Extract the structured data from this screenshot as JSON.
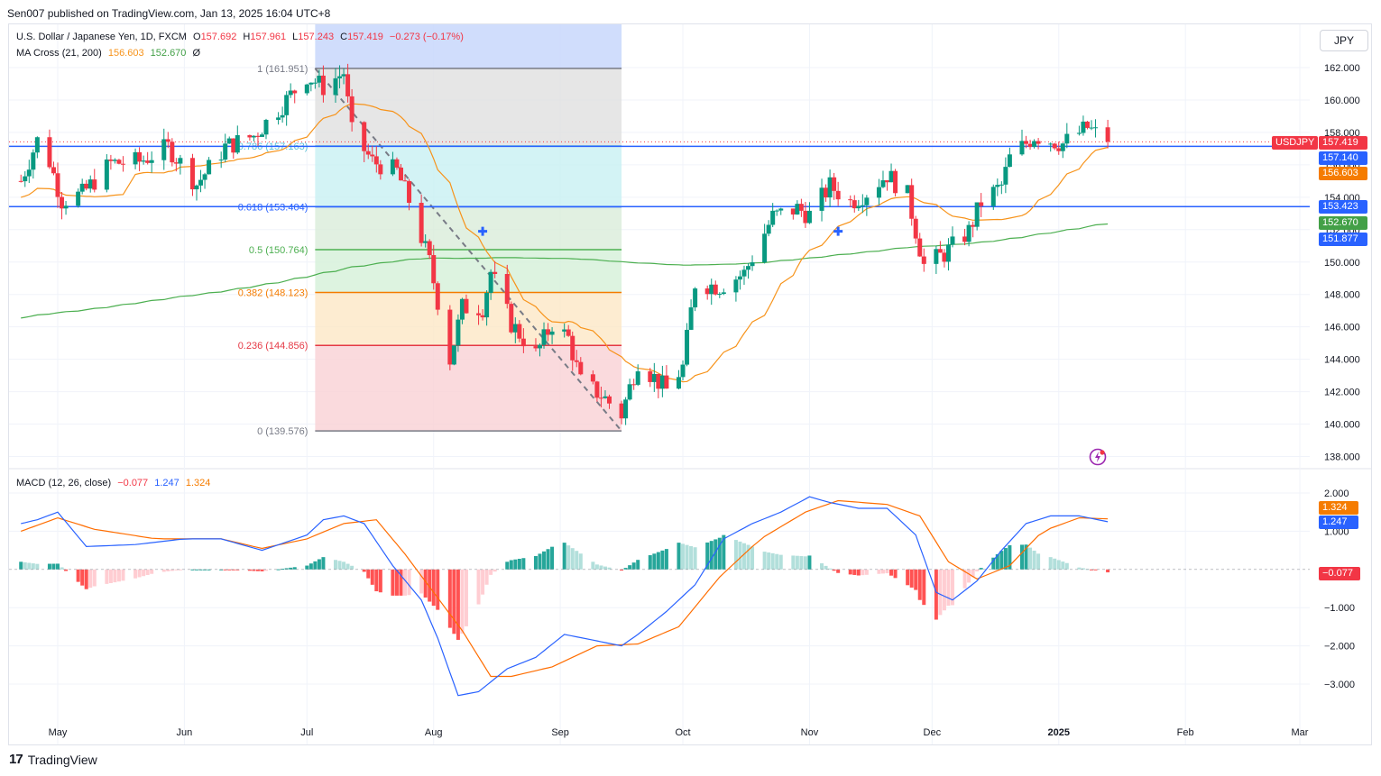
{
  "header": {
    "published": "Sen007 published on TradingView.com, Jan 13, 2025 16:04 UTC+8"
  },
  "legend": {
    "symbol": "U.S. Dollar / Japanese Yen, 1D, FXCM",
    "open_label": "O",
    "open": "157.692",
    "high_label": "H",
    "high": "157.961",
    "low_label": "L",
    "low": "157.243",
    "close_label": "C",
    "close": "157.419",
    "change": "−0.273 (−0.17%)",
    "ma_label": "MA Cross (21, 200)",
    "ma_fast": "156.603",
    "ma_slow": "152.670",
    "ma_extra": "Ø"
  },
  "macd_legend": {
    "label": "MACD (12, 26, close)",
    "hist": "−0.077",
    "macd": "1.247",
    "signal": "1.324"
  },
  "currency_button": "JPY",
  "price_tags": {
    "symbol_tag": "USDJPY",
    "last": "157.419",
    "line1": "157.140",
    "ma_fast": "156.603",
    "line2": "153.423",
    "ma_slow": "152.670",
    "cross": "151.877",
    "macd_signal": "1.324",
    "macd_line": "1.247",
    "macd_hist": "−0.077"
  },
  "footer": {
    "brand": "TradingView"
  },
  "colors": {
    "up": "#089981",
    "down": "#f23645",
    "fast_ma": "#f7931a",
    "slow_ma": "#4caf50",
    "hline": "#2962ff",
    "macd": "#2962ff",
    "signal": "#ff6d00",
    "hist_up_strong": "#26a69a",
    "hist_up_weak": "#b2dfdb",
    "hist_down_strong": "#ff5252",
    "hist_down_weak": "#ffcdd2"
  },
  "chart_data": [
    {
      "type": "candlestick",
      "title": "U.S. Dollar / Japanese Yen, 1D, FXCM",
      "x_ticks": [
        "May",
        "Jun",
        "Jul",
        "Aug",
        "Sep",
        "Oct",
        "Nov",
        "Dec",
        "2025",
        "Feb",
        "Mar"
      ],
      "y_ticks": [
        "138.000",
        "140.000",
        "142.000",
        "144.000",
        "146.000",
        "148.000",
        "150.000",
        "152.000",
        "154.000",
        "156.000",
        "158.000",
        "160.000",
        "162.000"
      ],
      "ylim": [
        137.5,
        164.0
      ],
      "close_series_approx": [
        [
          "2024-04-22",
          155.0
        ],
        [
          "2024-04-26",
          157.5
        ],
        [
          "2024-04-29",
          156.2
        ],
        [
          "2024-05-02",
          153.8
        ],
        [
          "2024-05-07",
          154.2
        ],
        [
          "2024-05-14",
          156.1
        ],
        [
          "2024-05-21",
          156.2
        ],
        [
          "2024-05-28",
          157.1
        ],
        [
          "2024-06-04",
          154.8
        ],
        [
          "2024-06-11",
          157.1
        ],
        [
          "2024-06-18",
          157.8
        ],
        [
          "2024-06-25",
          159.7
        ],
        [
          "2024-07-01",
          161.5
        ],
        [
          "2024-07-05",
          160.8
        ],
        [
          "2024-07-10",
          161.7
        ],
        [
          "2024-07-12",
          158.0
        ],
        [
          "2024-07-17",
          156.2
        ],
        [
          "2024-07-23",
          155.6
        ],
        [
          "2024-07-26",
          153.8
        ],
        [
          "2024-07-31",
          150.0
        ],
        [
          "2024-08-05",
          144.0
        ],
        [
          "2024-08-08",
          147.2
        ],
        [
          "2024-08-13",
          147.2
        ],
        [
          "2024-08-15",
          149.4
        ],
        [
          "2024-08-20",
          146.2
        ],
        [
          "2024-08-26",
          144.3
        ],
        [
          "2024-08-30",
          146.2
        ],
        [
          "2024-09-03",
          145.3
        ],
        [
          "2024-09-06",
          142.6
        ],
        [
          "2024-09-11",
          141.8
        ],
        [
          "2024-09-16",
          140.6
        ],
        [
          "2024-09-20",
          143.9
        ],
        [
          "2024-09-27",
          142.1
        ],
        [
          "2024-10-01",
          143.5
        ],
        [
          "2024-10-04",
          148.7
        ],
        [
          "2024-10-10",
          148.5
        ],
        [
          "2024-10-16",
          149.3
        ],
        [
          "2024-10-23",
          152.8
        ],
        [
          "2024-10-29",
          153.3
        ],
        [
          "2024-11-01",
          152.9
        ],
        [
          "2024-11-06",
          154.7
        ],
        [
          "2024-11-11",
          153.7
        ],
        [
          "2024-11-15",
          154.3
        ],
        [
          "2024-11-20",
          155.4
        ],
        [
          "2024-11-25",
          154.1
        ],
        [
          "2024-11-29",
          149.8
        ],
        [
          "2024-12-04",
          150.5
        ],
        [
          "2024-12-10",
          151.9
        ],
        [
          "2024-12-13",
          153.7
        ],
        [
          "2024-12-18",
          154.7
        ],
        [
          "2024-12-20",
          156.4
        ],
        [
          "2024-12-26",
          157.8
        ],
        [
          "2025-01-02",
          157.3
        ],
        [
          "2025-01-08",
          158.3
        ],
        [
          "2025-01-13",
          157.4
        ]
      ],
      "ma_cross": {
        "fast_period": 21,
        "slow_period": 200,
        "fast_last": 156.603,
        "slow_last": 152.67
      },
      "horizontal_lines": [
        157.14,
        153.423
      ],
      "fibonacci_retracement": {
        "date_range": [
          "2024-07-03",
          "2024-09-16"
        ],
        "levels": [
          {
            "ratio": "1",
            "price": 161.951
          },
          {
            "ratio": "0.786",
            "price": 157.163
          },
          {
            "ratio": "0.618",
            "price": 153.404
          },
          {
            "ratio": "0.5",
            "price": 150.764
          },
          {
            "ratio": "0.382",
            "price": 148.123
          },
          {
            "ratio": "0.236",
            "price": 144.856
          },
          {
            "ratio": "0",
            "price": 139.576
          }
        ],
        "label_texts": [
          "1 (161.951)",
          "0.786 (157.163)",
          "0.618 (153.404)",
          "0.5 (150.764)",
          "0.382 (148.123)",
          "0.236 (144.856)",
          "0 (139.576)"
        ]
      },
      "cross_markers": [
        [
          "2024-08-13",
          151.9
        ],
        [
          "2024-11-08",
          151.9
        ]
      ]
    },
    {
      "type": "macd",
      "title": "MACD (12, 26, close)",
      "y_ticks": [
        "−3.000",
        "−2.000",
        "−1.000",
        "1.000",
        "2.000"
      ],
      "ylim": [
        -3.6,
        2.3
      ],
      "macd_approx": [
        [
          "2024-04-22",
          1.2
        ],
        [
          "2024-04-26",
          1.3
        ],
        [
          "2024-05-01",
          1.5
        ],
        [
          "2024-05-08",
          0.6
        ],
        [
          "2024-05-20",
          0.65
        ],
        [
          "2024-06-01",
          0.8
        ],
        [
          "2024-06-10",
          0.8
        ],
        [
          "2024-06-20",
          0.5
        ],
        [
          "2024-07-01",
          0.9
        ],
        [
          "2024-07-05",
          1.3
        ],
        [
          "2024-07-10",
          1.4
        ],
        [
          "2024-07-15",
          1.2
        ],
        [
          "2024-07-22",
          0.1
        ],
        [
          "2024-07-29",
          -0.8
        ],
        [
          "2024-08-02",
          -1.8
        ],
        [
          "2024-08-07",
          -3.3
        ],
        [
          "2024-08-12",
          -3.2
        ],
        [
          "2024-08-19",
          -2.6
        ],
        [
          "2024-08-26",
          -2.3
        ],
        [
          "2024-09-02",
          -1.7
        ],
        [
          "2024-09-09",
          -1.85
        ],
        [
          "2024-09-16",
          -2.0
        ],
        [
          "2024-09-20",
          -1.7
        ],
        [
          "2024-09-27",
          -1.1
        ],
        [
          "2024-10-04",
          -0.4
        ],
        [
          "2024-10-11",
          0.8
        ],
        [
          "2024-10-18",
          1.2
        ],
        [
          "2024-10-25",
          1.5
        ],
        [
          "2024-11-01",
          1.9
        ],
        [
          "2024-11-06",
          1.75
        ],
        [
          "2024-11-13",
          1.6
        ],
        [
          "2024-11-20",
          1.6
        ],
        [
          "2024-11-27",
          0.9
        ],
        [
          "2024-12-02",
          -0.6
        ],
        [
          "2024-12-06",
          -0.8
        ],
        [
          "2024-12-12",
          -0.3
        ],
        [
          "2024-12-18",
          0.5
        ],
        [
          "2024-12-24",
          1.2
        ],
        [
          "2024-12-30",
          1.4
        ],
        [
          "2025-01-06",
          1.4
        ],
        [
          "2025-01-13",
          1.247
        ]
      ],
      "signal_approx": [
        [
          "2024-04-22",
          1.0
        ],
        [
          "2024-05-01",
          1.35
        ],
        [
          "2024-05-10",
          1.05
        ],
        [
          "2024-05-25",
          0.8
        ],
        [
          "2024-06-10",
          0.8
        ],
        [
          "2024-06-20",
          0.55
        ],
        [
          "2024-07-01",
          0.8
        ],
        [
          "2024-07-10",
          1.2
        ],
        [
          "2024-07-18",
          1.3
        ],
        [
          "2024-07-25",
          0.4
        ],
        [
          "2024-08-01",
          -0.6
        ],
        [
          "2024-08-08",
          -1.6
        ],
        [
          "2024-08-15",
          -2.8
        ],
        [
          "2024-08-20",
          -2.8
        ],
        [
          "2024-08-30",
          -2.55
        ],
        [
          "2024-09-10",
          -2.0
        ],
        [
          "2024-09-20",
          -1.95
        ],
        [
          "2024-09-30",
          -1.5
        ],
        [
          "2024-10-10",
          -0.2
        ],
        [
          "2024-10-20",
          0.8
        ],
        [
          "2024-10-31",
          1.5
        ],
        [
          "2024-11-08",
          1.8
        ],
        [
          "2024-11-20",
          1.7
        ],
        [
          "2024-11-28",
          1.4
        ],
        [
          "2024-12-05",
          0.2
        ],
        [
          "2024-12-12",
          -0.25
        ],
        [
          "2024-12-20",
          0.1
        ],
        [
          "2024-12-28",
          1.0
        ],
        [
          "2025-01-06",
          1.35
        ],
        [
          "2025-01-13",
          1.324
        ]
      ],
      "histogram_last": -0.077
    }
  ]
}
